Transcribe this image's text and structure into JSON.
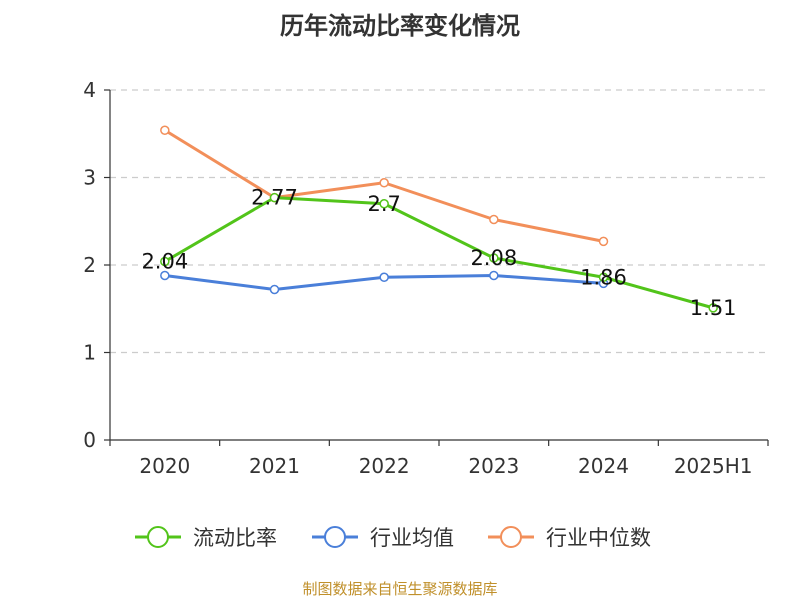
{
  "chart_data": {
    "type": "line",
    "title": "历年流动比率变化情况",
    "categories": [
      "2020",
      "2021",
      "2022",
      "2023",
      "2024",
      "2025H1"
    ],
    "ylim": [
      0,
      4
    ],
    "yticks": [
      "0",
      "1",
      "2",
      "3",
      "4"
    ],
    "grid": true,
    "legend_position": "bottom",
    "series": [
      {
        "name": "流动比率",
        "color": "#52c41a",
        "values": [
          2.04,
          2.77,
          2.7,
          2.08,
          1.86,
          1.51
        ],
        "labels": [
          "2.04",
          "2.77",
          "2.7",
          "2.08",
          "1.86",
          "1.51"
        ]
      },
      {
        "name": "行业均值",
        "color": "#4a7fd9",
        "values": [
          1.88,
          1.72,
          1.86,
          1.88,
          1.79,
          null
        ]
      },
      {
        "name": "行业中位数",
        "color": "#f28f5a",
        "values": [
          3.54,
          2.77,
          2.94,
          2.52,
          2.27,
          null
        ]
      }
    ]
  },
  "footer": "制图数据来自恒生聚源数据库"
}
